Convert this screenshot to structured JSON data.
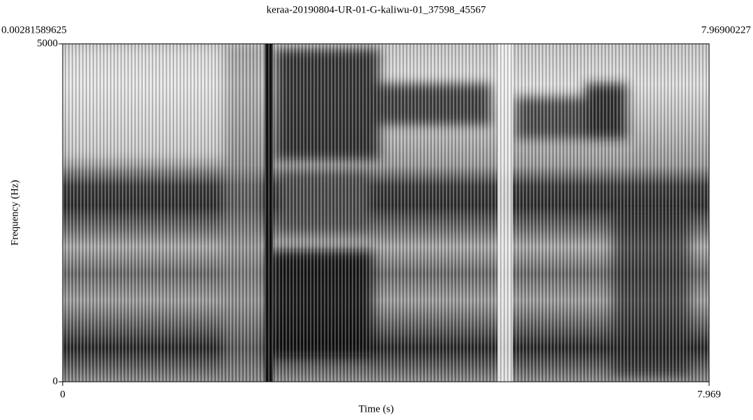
{
  "chart_data": {
    "type": "spectrogram",
    "title": "keraa-20190804-UR-01-G-kaliwu-01_37598_45567",
    "annotations": [
      "0.00281589625",
      "7.96900227"
    ],
    "x_label": "Time (s)",
    "y_label": "Frequency (Hz)",
    "xlim": [
      0,
      7.969
    ],
    "xticks": [
      0,
      7.969
    ],
    "ylim": [
      0,
      5000
    ],
    "yticks": [
      0,
      5000
    ]
  }
}
